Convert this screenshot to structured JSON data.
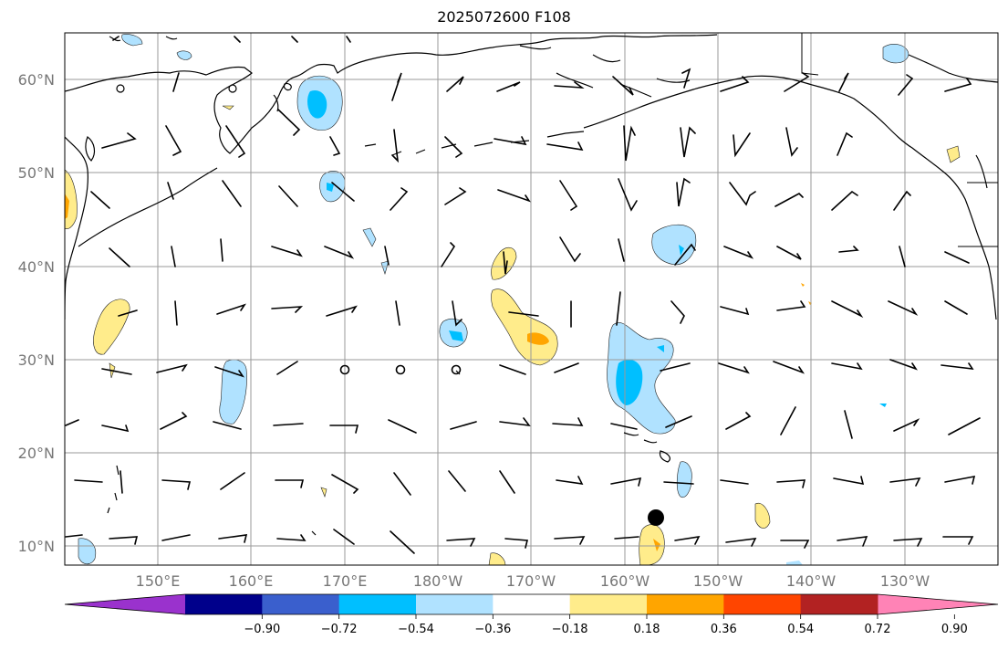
{
  "title": "2025072600 F108",
  "lat_labels": [
    "60°N",
    "50°N",
    "40°N",
    "30°N",
    "20°N",
    "10°N"
  ],
  "lon_labels": [
    "150°E",
    "160°E",
    "170°E",
    "180°W",
    "170°W",
    "160°W",
    "150°W",
    "140°W",
    "130°W"
  ],
  "colorbar": {
    "ticks": [
      "−0.90",
      "−0.72",
      "−0.54",
      "−0.36",
      "−0.18",
      "0.18",
      "0.36",
      "0.54",
      "0.72",
      "0.90"
    ],
    "colors": [
      "#9a32cd",
      "#00008b",
      "#3a5fcd",
      "#00bfff",
      "#b0e2ff",
      "#ffffff",
      "#ffec8b",
      "#ffa500",
      "#ff4500",
      "#b22222",
      "#ff83b6"
    ]
  },
  "map": {
    "extent": {
      "lon_min": 140,
      "lon_max": 240,
      "lat_min": 8,
      "lat_max": 65
    },
    "storm_marker": {
      "lon": 203.8,
      "lat": 13
    },
    "calm_circles": [
      {
        "lon": 170,
        "lat": 29
      },
      {
        "lon": 176,
        "lat": 29
      },
      {
        "lon": 182,
        "lat": 29
      }
    ]
  }
}
